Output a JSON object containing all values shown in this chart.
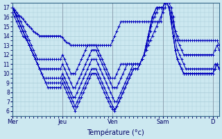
{
  "xlabel": "Température (°c)",
  "background_color": "#cce8f0",
  "grid_color": "#aaccd8",
  "line_color": "#0000bb",
  "ylim": [
    5.5,
    17.5
  ],
  "yticks": [
    6,
    7,
    8,
    9,
    10,
    11,
    12,
    13,
    14,
    15,
    16,
    17
  ],
  "day_labels": [
    "Mer",
    "Jeu",
    "Ven",
    "Sam",
    "D"
  ],
  "day_positions": [
    0,
    24,
    48,
    72,
    96
  ],
  "total_points": 100,
  "series": [
    [
      17.0,
      16.8,
      16.5,
      16.2,
      16.0,
      15.8,
      15.5,
      15.2,
      15.0,
      14.8,
      14.5,
      14.3,
      14.2,
      14.0,
      14.0,
      14.0,
      14.0,
      14.0,
      14.0,
      14.0,
      14.0,
      14.0,
      14.0,
      14.0,
      13.8,
      13.5,
      13.3,
      13.2,
      13.0,
      13.0,
      13.0,
      13.0,
      13.0,
      13.0,
      13.0,
      13.0,
      13.0,
      13.0,
      13.0,
      13.0,
      13.0,
      13.0,
      13.0,
      13.0,
      13.0,
      13.0,
      13.0,
      13.0,
      13.5,
      14.0,
      14.5,
      15.0,
      15.5,
      15.5,
      15.5,
      15.5,
      15.5,
      15.5,
      15.5,
      15.5,
      15.5,
      15.5,
      15.5,
      15.5,
      15.5,
      15.5,
      15.5,
      15.5,
      15.5,
      15.5,
      15.5,
      15.5,
      17.0,
      17.5,
      17.5,
      17.0,
      16.5,
      15.5,
      14.5,
      14.0,
      13.5,
      13.5,
      13.5,
      13.5,
      13.5,
      13.5,
      13.5,
      13.5,
      13.5,
      13.5,
      13.5,
      13.5,
      13.5,
      13.5,
      13.5,
      13.5,
      13.5,
      13.5,
      13.5,
      13.0
    ],
    [
      17.0,
      16.5,
      16.2,
      16.0,
      15.5,
      15.0,
      14.5,
      14.0,
      13.5,
      13.0,
      12.5,
      12.0,
      11.5,
      11.5,
      11.5,
      11.5,
      11.5,
      11.5,
      11.5,
      11.5,
      11.5,
      11.5,
      11.5,
      11.5,
      12.0,
      11.5,
      11.0,
      10.5,
      10.0,
      10.0,
      10.0,
      10.5,
      11.0,
      11.5,
      12.0,
      12.5,
      13.0,
      13.0,
      13.0,
      13.0,
      13.0,
      12.5,
      12.0,
      11.5,
      11.0,
      10.5,
      10.0,
      9.5,
      9.5,
      9.5,
      10.0,
      10.5,
      11.0,
      11.0,
      11.0,
      11.0,
      11.0,
      11.0,
      11.0,
      11.0,
      11.0,
      11.0,
      11.5,
      12.0,
      12.5,
      13.0,
      13.5,
      14.0,
      14.5,
      15.0,
      15.5,
      16.0,
      16.5,
      17.0,
      17.5,
      17.5,
      17.0,
      16.0,
      14.5,
      13.5,
      13.0,
      12.5,
      12.0,
      12.0,
      12.0,
      12.0,
      12.0,
      12.0,
      12.0,
      12.0,
      12.0,
      12.0,
      12.0,
      12.0,
      12.0,
      12.0,
      12.0,
      12.5,
      13.0,
      12.5
    ],
    [
      17.0,
      16.5,
      16.0,
      15.5,
      15.0,
      14.5,
      14.0,
      13.5,
      13.0,
      12.5,
      12.0,
      11.5,
      11.0,
      10.5,
      10.5,
      10.5,
      10.5,
      10.5,
      10.5,
      10.5,
      10.5,
      10.5,
      10.5,
      10.5,
      11.0,
      10.5,
      10.0,
      9.5,
      9.0,
      8.5,
      8.5,
      9.0,
      9.5,
      10.0,
      10.5,
      11.0,
      11.5,
      12.0,
      12.5,
      12.5,
      12.5,
      12.0,
      11.5,
      11.0,
      10.5,
      10.0,
      9.5,
      9.0,
      8.5,
      8.5,
      8.5,
      9.0,
      9.5,
      10.0,
      10.5,
      11.0,
      11.0,
      11.0,
      11.0,
      11.0,
      11.0,
      11.0,
      11.5,
      12.0,
      12.5,
      13.5,
      14.5,
      15.5,
      16.0,
      16.5,
      17.0,
      17.0,
      17.0,
      17.5,
      17.5,
      17.0,
      16.0,
      15.0,
      13.5,
      12.5,
      12.0,
      11.5,
      11.0,
      10.5,
      10.5,
      10.5,
      10.5,
      10.5,
      10.5,
      10.5,
      10.5,
      10.5,
      10.5,
      10.5,
      10.5,
      10.5,
      10.5,
      11.0,
      11.0,
      10.5
    ],
    [
      17.0,
      16.5,
      16.0,
      15.5,
      15.0,
      14.5,
      14.0,
      13.5,
      13.0,
      12.5,
      12.0,
      11.5,
      11.0,
      10.5,
      10.0,
      9.5,
      9.5,
      9.5,
      9.5,
      9.5,
      9.5,
      9.5,
      9.5,
      9.5,
      10.0,
      9.5,
      9.0,
      8.5,
      8.0,
      7.5,
      7.5,
      8.0,
      8.5,
      9.0,
      9.5,
      10.0,
      10.5,
      11.0,
      11.5,
      11.5,
      11.5,
      11.0,
      10.5,
      10.0,
      9.5,
      9.0,
      8.5,
      8.0,
      7.5,
      7.0,
      7.0,
      7.5,
      8.0,
      8.5,
      9.0,
      9.5,
      10.0,
      10.5,
      11.0,
      11.0,
      11.0,
      11.0,
      11.5,
      12.0,
      13.0,
      14.0,
      15.0,
      16.0,
      16.5,
      17.0,
      17.0,
      17.0,
      17.0,
      17.5,
      17.5,
      17.0,
      15.5,
      14.0,
      12.5,
      11.5,
      11.0,
      10.5,
      10.0,
      10.0,
      10.0,
      10.0,
      10.0,
      10.0,
      10.0,
      10.0,
      10.0,
      10.0,
      10.0,
      10.0,
      10.0,
      10.0,
      10.0,
      10.5,
      11.0,
      10.5
    ],
    [
      17.0,
      16.5,
      16.0,
      15.5,
      15.0,
      14.5,
      14.0,
      13.5,
      13.0,
      12.5,
      12.0,
      11.5,
      11.0,
      10.5,
      10.0,
      9.5,
      9.0,
      9.0,
      9.0,
      9.0,
      9.0,
      9.0,
      9.0,
      9.0,
      9.5,
      9.0,
      8.5,
      8.0,
      7.5,
      7.0,
      6.5,
      7.0,
      7.5,
      8.0,
      8.5,
      9.0,
      9.5,
      10.0,
      10.5,
      10.5,
      10.5,
      10.0,
      9.5,
      9.0,
      8.5,
      8.0,
      7.5,
      7.0,
      6.5,
      6.2,
      6.5,
      7.0,
      7.5,
      8.0,
      8.5,
      9.0,
      9.5,
      10.0,
      10.5,
      10.5,
      10.5,
      11.0,
      11.5,
      12.0,
      13.0,
      14.0,
      15.0,
      16.0,
      16.5,
      17.0,
      17.0,
      17.0,
      17.0,
      17.5,
      17.5,
      17.0,
      15.5,
      14.0,
      12.5,
      11.5,
      11.0,
      10.5,
      10.0,
      10.0,
      10.0,
      10.0,
      10.0,
      10.0,
      10.0,
      10.0,
      10.0,
      10.0,
      10.0,
      10.0,
      10.0,
      10.0,
      10.0,
      10.5,
      11.0,
      10.5
    ],
    [
      16.5,
      16.0,
      15.5,
      15.0,
      14.5,
      14.0,
      13.8,
      13.5,
      13.0,
      12.5,
      12.0,
      11.5,
      11.0,
      10.5,
      10.0,
      9.5,
      9.0,
      8.5,
      8.5,
      8.5,
      8.5,
      8.5,
      8.5,
      8.5,
      9.0,
      8.5,
      8.0,
      7.5,
      7.0,
      6.5,
      6.0,
      6.5,
      7.0,
      7.5,
      8.0,
      8.5,
      9.0,
      9.5,
      10.0,
      10.0,
      10.0,
      9.5,
      9.0,
      8.5,
      8.0,
      7.5,
      7.0,
      6.5,
      6.2,
      6.0,
      6.5,
      7.0,
      7.5,
      8.0,
      8.5,
      9.0,
      9.5,
      10.0,
      10.5,
      10.5,
      10.5,
      11.0,
      11.5,
      12.0,
      13.0,
      14.0,
      15.0,
      16.0,
      16.5,
      17.0,
      17.0,
      17.0,
      17.0,
      17.5,
      17.5,
      17.0,
      15.5,
      14.0,
      12.5,
      11.5,
      11.0,
      10.5,
      10.0,
      10.0,
      10.0,
      10.0,
      10.0,
      10.0,
      10.0,
      10.0,
      10.0,
      10.0,
      10.0,
      10.0,
      10.0,
      10.0,
      10.0,
      10.5,
      11.0,
      10.5
    ]
  ]
}
